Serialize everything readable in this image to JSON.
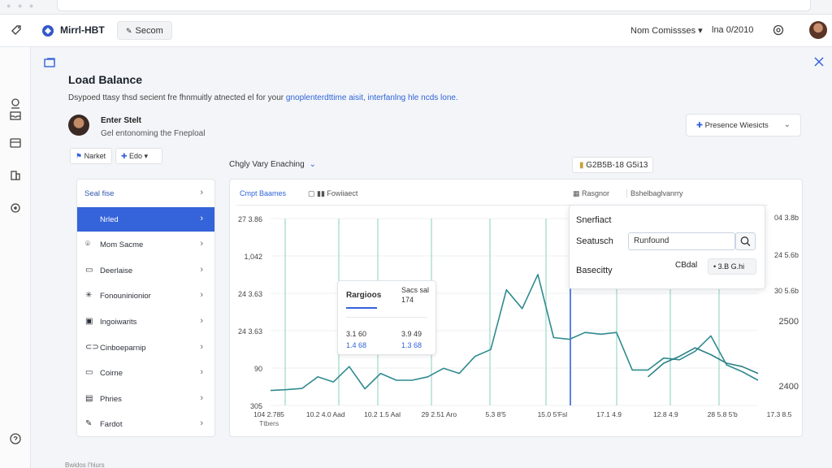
{
  "header": {
    "app_title": "Mirrl-HBT",
    "search_chip": "Secom",
    "user_menu": "Nom Comissses ▾",
    "date_text": "lna 0/2010"
  },
  "page": {
    "title": "Load Balance",
    "description_plain": "Dsypoed ttasy thsd secient fre fhnmuitly atnected el for your ",
    "description_link": "gnoplenterdttime aisit, interfanlng hle ncds lone.",
    "profile_name": "Enter Stelt",
    "profile_subtitle": "Gel entonoming the Fneploal",
    "button_market": "Narket",
    "button_edo": "Edo ▾",
    "presence_dropdown": "Presence Wiesicts",
    "chart_dropdown": "Chgly Vary Enaching",
    "value_chip": "G2B5B-18 G5i13"
  },
  "menu": {
    "items": [
      {
        "label": "Seal fise",
        "icon": "none"
      },
      {
        "label": "Nrled",
        "icon": "none"
      },
      {
        "label": "Mom Sacme",
        "icon": "location-pin-icon"
      },
      {
        "label": "Deerlaise",
        "icon": "document-icon"
      },
      {
        "label": "Fonouninionior",
        "icon": "sparkle-icon"
      },
      {
        "label": "Ingoiwarits",
        "icon": "layers-icon"
      },
      {
        "label": "Cinboeparnip",
        "icon": "pill-icon"
      },
      {
        "label": "Coirne",
        "icon": "card-icon"
      },
      {
        "label": "Phries",
        "icon": "image-icon"
      },
      {
        "label": "Fardot",
        "icon": "edit-icon"
      }
    ],
    "active_index": 1
  },
  "chart": {
    "tab_1": "Cmpt Baames",
    "tab_2": "Fowiiaect",
    "tab_3": "Rasgnor",
    "tab_4": "Bshelbaglvanrry"
  },
  "tooltip": {
    "title": "Rargioos",
    "col2_head": "Sacs sal",
    "col2_val": "174",
    "row1_a": "3.1 60",
    "row1_b": "3.9 49",
    "row2_a": "1.4 68",
    "row2_b": "1.3 68"
  },
  "popover": {
    "title": "Snerfiact",
    "search_label": "Seatusch",
    "search_value": "Runfound",
    "baseline_label": "Basecitty",
    "baseline_value": "CBdal",
    "select_value": "• 3.B G.hi"
  },
  "footer": {
    "label": "Bwidos l'hiurs"
  },
  "chart_data": {
    "type": "line",
    "y_left_ticks": [
      "27 3.86",
      "1,042",
      "24 3.63",
      "24 3.63",
      "90",
      "305"
    ],
    "y_right_ticks": [
      "04 3.8b",
      "24 5.6b",
      "30 5.6b",
      "2500",
      "2400"
    ],
    "x_ticks": [
      "104 2.785",
      "10.2 4.0 Aad",
      "10.2 1.5 Aal",
      "29 2.51 Aro",
      "5.3 8'5",
      "15.0 5'Fsl",
      "17.1 4.9",
      "12.8 4.9",
      "28 5.8 5'b",
      "17.3 8.5"
    ],
    "x_sub_label": "Ttbers",
    "series": [
      {
        "values": [
          0.04,
          0.045,
          0.052,
          0.12,
          0.09,
          0.18,
          0.05,
          0.14,
          0.1,
          0.1,
          0.12,
          0.17,
          0.14,
          0.24,
          0.28,
          0.63,
          0.52,
          0.72,
          0.35,
          0.34,
          0.38,
          0.37,
          0.38,
          0.16,
          0.16,
          0.23,
          0.22,
          0.27,
          0.36,
          0.19,
          0.15,
          0.1
        ]
      },
      {
        "values": [
          null,
          null,
          null,
          null,
          null,
          null,
          null,
          null,
          null,
          null,
          null,
          null,
          null,
          null,
          null,
          null,
          null,
          null,
          null,
          null,
          null,
          null,
          null,
          null,
          0.12,
          0.2,
          0.24,
          0.29,
          0.25,
          0.2,
          0.18,
          0.14
        ]
      }
    ]
  }
}
